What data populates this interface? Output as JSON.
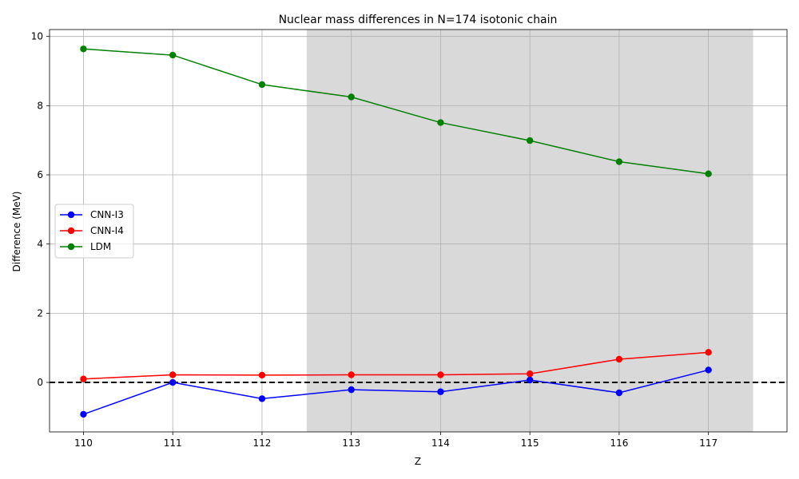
{
  "chart_data": {
    "type": "line",
    "title": "Nuclear mass differences in N=174 isotonic chain",
    "xlabel": "Z",
    "ylabel": "Difference (MeV)",
    "x": [
      110,
      111,
      112,
      113,
      114,
      115,
      116,
      117
    ],
    "xlim": [
      109.62,
      117.88
    ],
    "ylim": [
      -1.43,
      10.2
    ],
    "xticks": [
      110,
      111,
      112,
      113,
      114,
      115,
      116,
      117
    ],
    "yticks": [
      0,
      2,
      4,
      6,
      8,
      10
    ],
    "grid": true,
    "legend_position": "center-left",
    "shaded_region": {
      "x_start": 112.5,
      "x_end": 117.5,
      "color": "#d9d9d9"
    },
    "reference_line": {
      "y": 0,
      "style": "dashed",
      "color": "#000000"
    },
    "series": [
      {
        "name": "CNN-I3",
        "color": "#0000ff",
        "values": [
          -0.92,
          0.0,
          -0.47,
          -0.21,
          -0.27,
          0.07,
          -0.3,
          0.36
        ]
      },
      {
        "name": "CNN-I4",
        "color": "#ff0000",
        "values": [
          0.1,
          0.22,
          0.21,
          0.22,
          0.22,
          0.25,
          0.67,
          0.87
        ]
      },
      {
        "name": "LDM",
        "color": "#008000",
        "values": [
          9.64,
          9.46,
          8.61,
          8.25,
          7.51,
          6.99,
          6.38,
          6.03
        ]
      }
    ]
  }
}
